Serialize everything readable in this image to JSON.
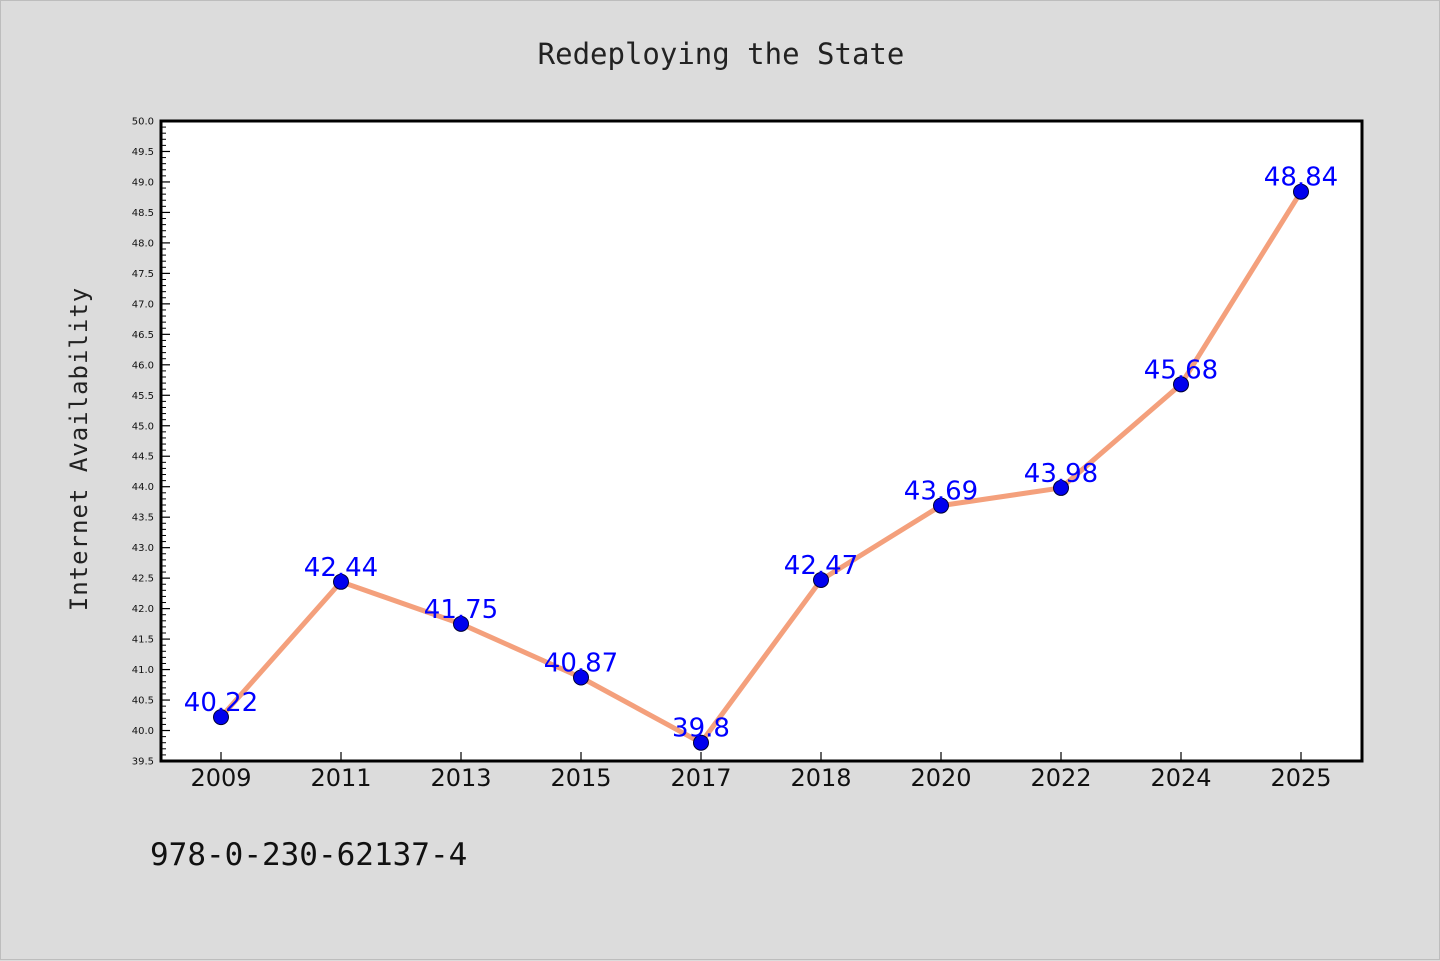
{
  "chart_data": {
    "type": "line",
    "title": "Redeploying the State",
    "xlabel": "",
    "ylabel": "Internet Availability",
    "categories": [
      "2009",
      "2011",
      "2013",
      "2015",
      "2017",
      "2018",
      "2020",
      "2022",
      "2024",
      "2025"
    ],
    "values": [
      40.22,
      42.44,
      41.75,
      40.87,
      39.8,
      42.47,
      43.69,
      43.98,
      45.68,
      48.84
    ],
    "data_labels": [
      "40.22",
      "42.44",
      "41.75",
      "40.87",
      "39.8",
      "42.47",
      "43.69",
      "43.98",
      "45.68",
      "48.84"
    ],
    "ylim": [
      39.5,
      50.0
    ],
    "yticks": [
      "39.5",
      "40.0",
      "40.5",
      "41.0",
      "41.5",
      "42.0",
      "42.5",
      "43.0",
      "43.5",
      "44.0",
      "44.5",
      "45.0",
      "45.5",
      "46.0",
      "46.5",
      "47.0",
      "47.5",
      "48.0",
      "48.5",
      "49.0",
      "49.5",
      "50.0"
    ],
    "grid": false,
    "legend": "none",
    "line_color": "#f4a07c",
    "marker_color": "#0000ee",
    "label_color": "#0000ff"
  },
  "footer": {
    "isbn": "978-0-230-62137-4"
  }
}
